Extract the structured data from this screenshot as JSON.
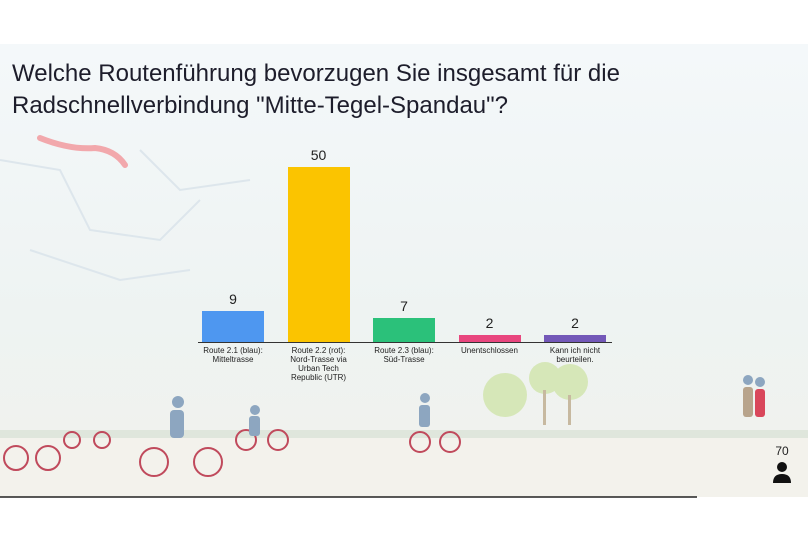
{
  "chart_data": {
    "type": "bar",
    "title": "Welche Routenführung bevorzugen Sie insgesamt für die Radschnellverbindung \"Mitte-Tegel-Spandau\"?",
    "categories": [
      "Route 2.1 (blau): Mitteltrasse",
      "Route 2.2 (rot): Nord-Trasse via Urban Tech Republic (UTR)",
      "Route 2.3 (blau): Süd-Trasse",
      "Unentschlossen",
      "Kann ich nicht beurteilen."
    ],
    "values": [
      9,
      50,
      7,
      2,
      2
    ],
    "colors": [
      "#4e97f0",
      "#fbc400",
      "#2bc17a",
      "#e8467e",
      "#7358b8"
    ]
  },
  "respondents": 70
}
